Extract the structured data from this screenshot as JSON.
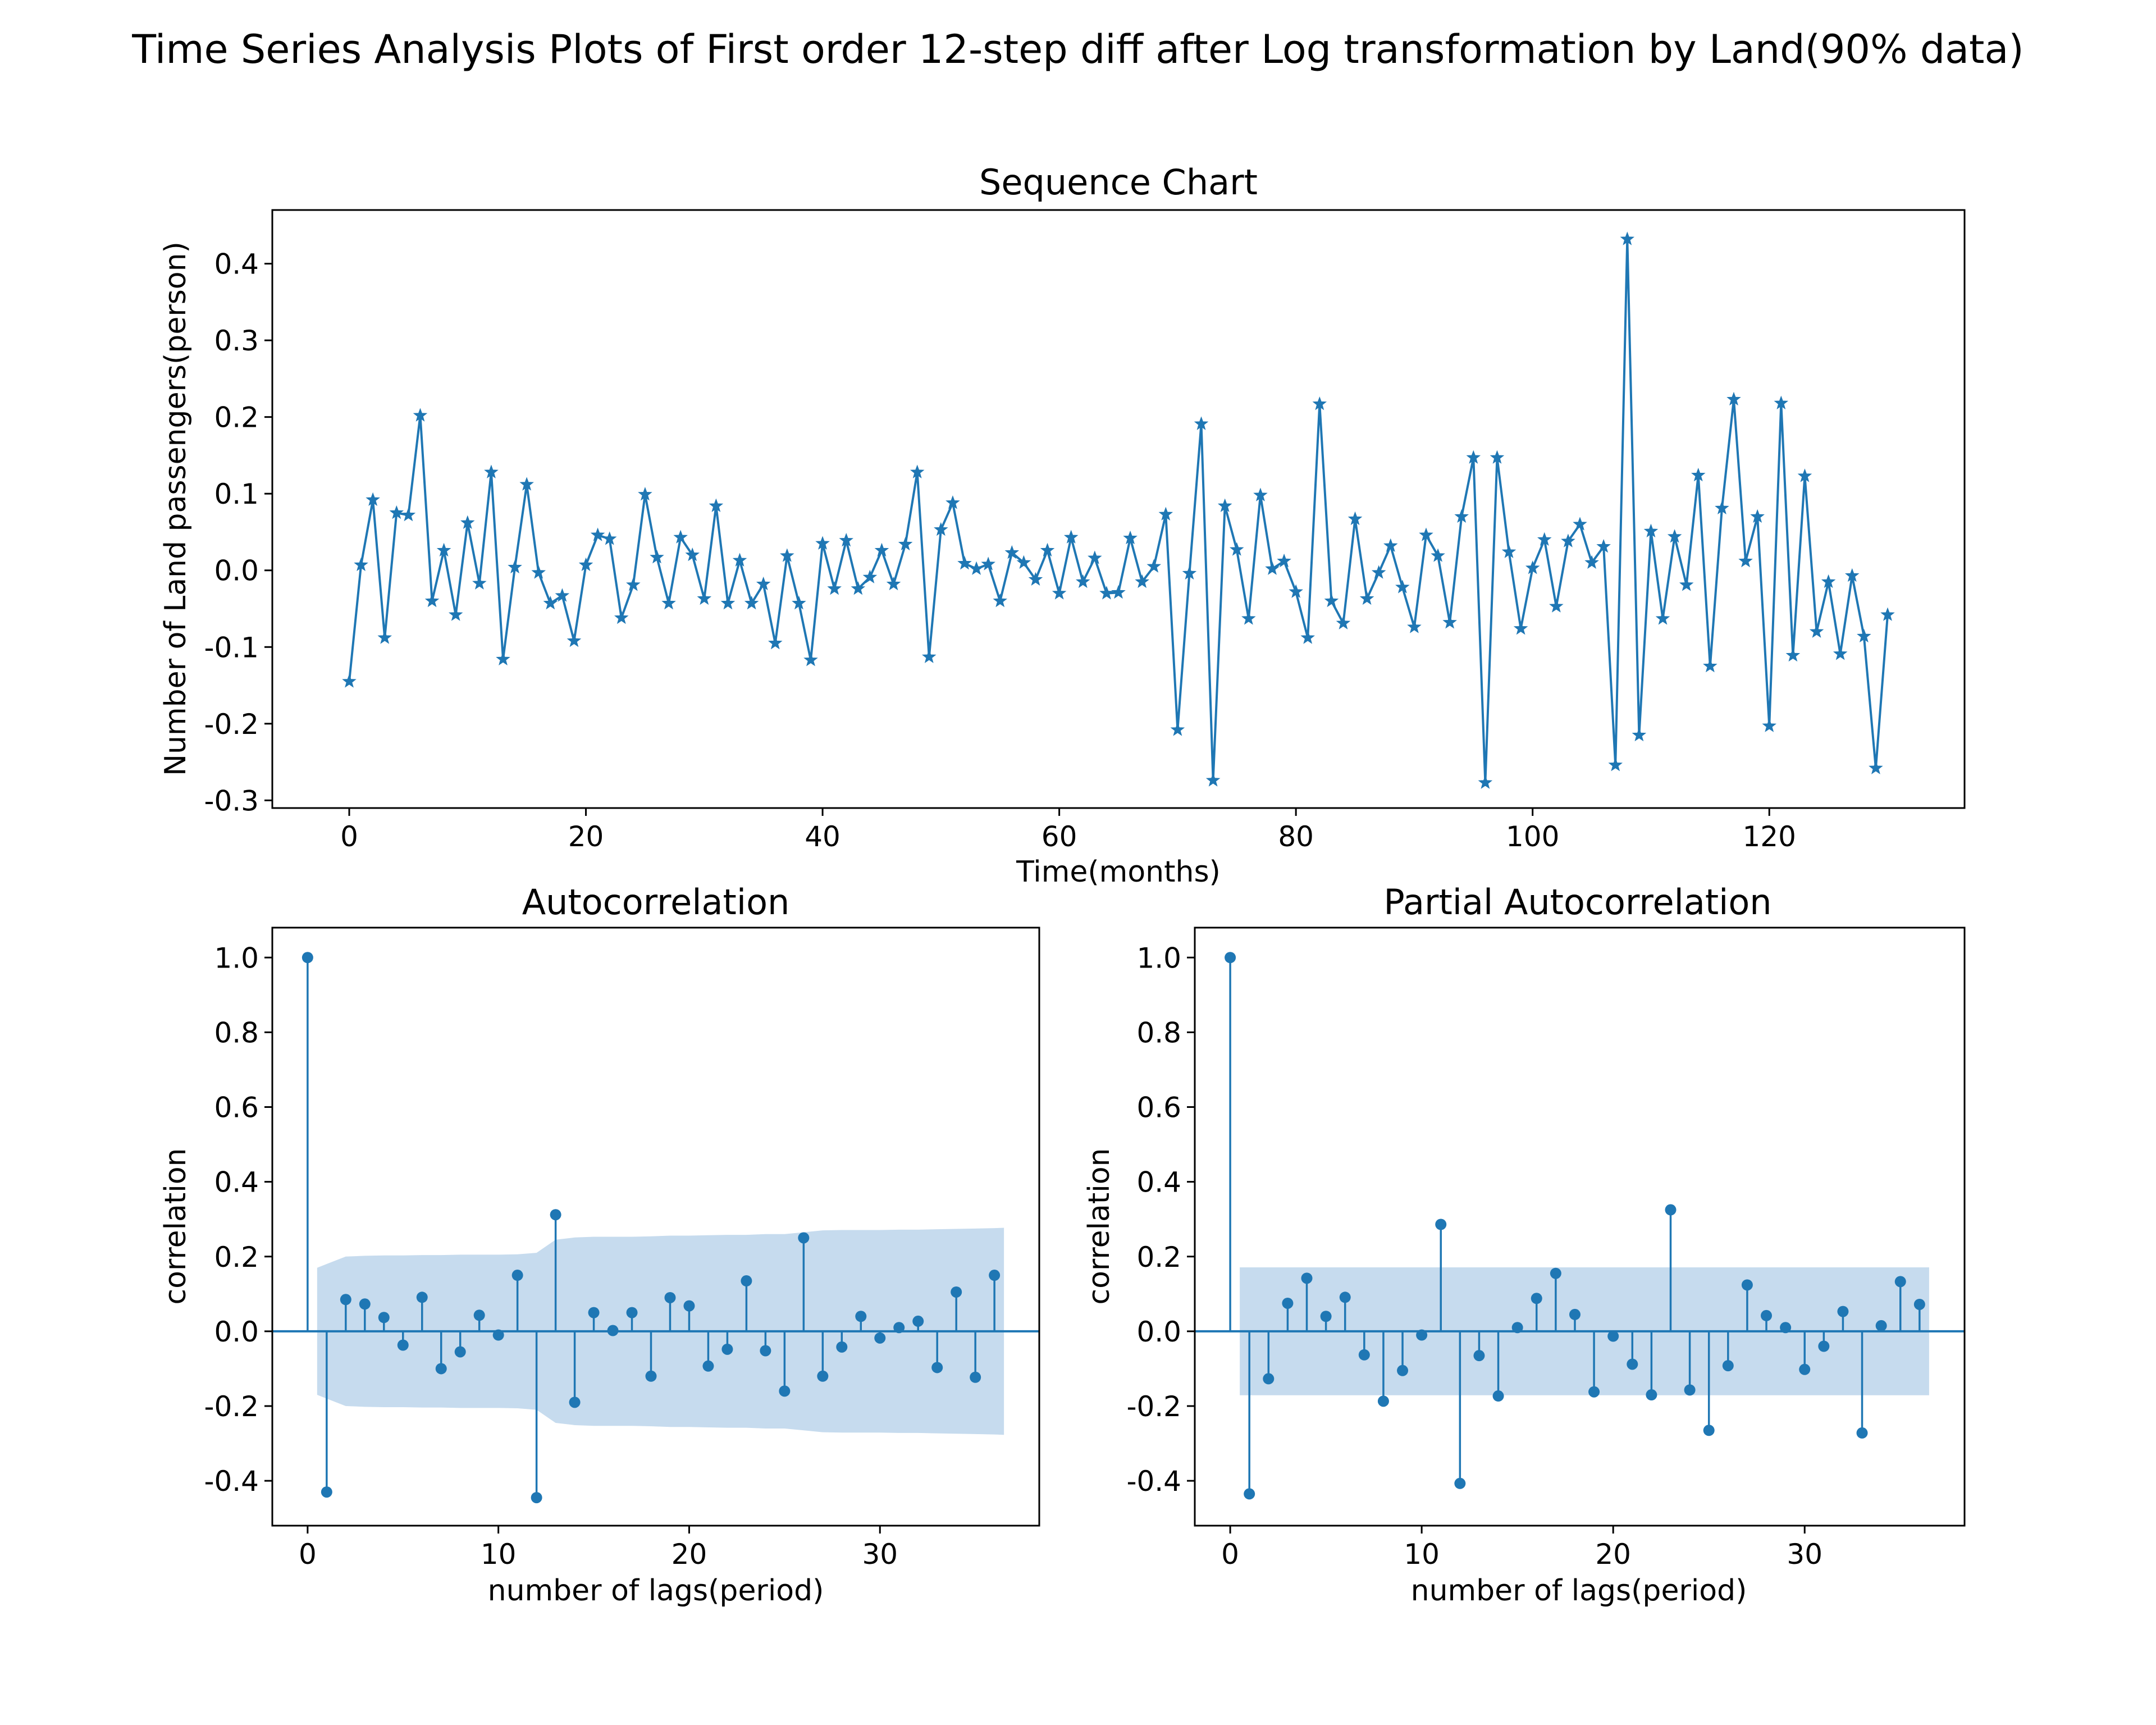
{
  "figure": {
    "title": "Time Series Analysis Plots of First order 12-step diff after Log transformation by Land(90% data)",
    "color": "#1f77b4",
    "band_color": "#c6dbee"
  },
  "chart_data": [
    {
      "type": "line",
      "title": "Sequence Chart",
      "xlabel": "Time(months)",
      "ylabel": "Number of Land passengers(person)",
      "marker": "star",
      "xlim": [
        -6.5,
        136.5
      ],
      "ylim": [
        -0.31,
        0.47
      ],
      "xticks": [
        0,
        20,
        40,
        60,
        80,
        100,
        120
      ],
      "xtick_labels": [
        "0",
        "20",
        "40",
        "60",
        "80",
        "100",
        "120"
      ],
      "yticks": [
        -0.3,
        -0.2,
        -0.1,
        0.0,
        0.1,
        0.2,
        0.3,
        0.4
      ],
      "ytick_labels": [
        "-0.3",
        "-0.2",
        "-0.1",
        "0.0",
        "0.1",
        "0.2",
        "0.3",
        "0.4"
      ],
      "series": [
        {
          "values": [
            -0.145,
            0.007,
            0.092,
            -0.088,
            0.075,
            0.072,
            0.202,
            -0.04,
            0.026,
            -0.058,
            0.062,
            -0.017,
            0.128,
            -0.116,
            0.004,
            0.112,
            -0.003,
            -0.043,
            -0.033,
            -0.092,
            0.007,
            0.046,
            0.041,
            -0.062,
            -0.019,
            0.099,
            0.017,
            -0.043,
            0.043,
            0.02,
            -0.037,
            0.084,
            -0.043,
            0.013,
            -0.043,
            -0.018,
            -0.095,
            0.019,
            -0.043,
            -0.117,
            0.035,
            -0.024,
            0.039,
            -0.024,
            -0.009,
            0.026,
            -0.018,
            0.034,
            0.128,
            -0.113,
            0.053,
            0.088,
            0.009,
            0.002,
            0.008,
            -0.04,
            0.023,
            0.01,
            -0.012,
            0.026,
            -0.03,
            0.043,
            -0.015,
            0.016,
            -0.03,
            -0.029,
            0.042,
            -0.015,
            0.005,
            0.073,
            -0.208,
            -0.004,
            0.191,
            -0.274,
            0.084,
            0.027,
            -0.063,
            0.098,
            0.002,
            0.012,
            -0.028,
            -0.088,
            0.217,
            -0.04,
            -0.069,
            0.067,
            -0.037,
            -0.003,
            0.032,
            -0.022,
            -0.074,
            0.046,
            0.019,
            -0.068,
            0.07,
            0.147,
            -0.277,
            0.147,
            0.024,
            -0.076,
            0.003,
            0.04,
            -0.047,
            0.038,
            0.06,
            0.01,
            0.031,
            -0.254,
            0.432,
            -0.215,
            0.051,
            -0.063,
            0.044,
            -0.019,
            0.124,
            -0.125,
            0.081,
            0.223,
            0.012,
            0.07,
            -0.203,
            0.218,
            -0.111,
            0.123,
            -0.08,
            -0.015,
            -0.109,
            -0.007,
            -0.086,
            -0.258,
            -0.058
          ]
        }
      ]
    },
    {
      "type": "stem",
      "title": "Autocorrelation",
      "xlabel": "number of lags(period)",
      "ylabel": "correlation",
      "xlim": [
        -1.85,
        38.35
      ],
      "ylim": [
        -0.52,
        1.08
      ],
      "xticks": [
        0,
        10,
        20,
        30
      ],
      "xtick_labels": [
        "0",
        "10",
        "20",
        "30"
      ],
      "yticks": [
        -0.4,
        -0.2,
        0.0,
        0.2,
        0.4,
        0.6,
        0.8,
        1.0
      ],
      "ytick_labels": [
        "-0.4",
        "-0.2",
        "0.0",
        "0.2",
        "0.4",
        "0.6",
        "0.8",
        "1.0"
      ],
      "lags": [
        0,
        1,
        2,
        3,
        4,
        5,
        6,
        7,
        8,
        9,
        10,
        11,
        12,
        13,
        14,
        15,
        16,
        17,
        18,
        19,
        20,
        21,
        22,
        23,
        24,
        25,
        26,
        27,
        28,
        29,
        30,
        31,
        32,
        33,
        34,
        35,
        36
      ],
      "values": [
        1.0,
        -0.43,
        0.085,
        0.073,
        0.037,
        -0.037,
        0.091,
        -0.1,
        -0.055,
        0.043,
        -0.01,
        0.15,
        -0.445,
        0.312,
        -0.19,
        0.05,
        0.002,
        0.05,
        -0.12,
        0.09,
        0.068,
        -0.093,
        -0.048,
        0.135,
        -0.052,
        -0.16,
        0.25,
        -0.12,
        -0.042,
        0.04,
        -0.018,
        0.01,
        0.027,
        -0.097,
        0.105,
        -0.123,
        0.15
      ],
      "confidence_band": {
        "lags": [
          0.5,
          1,
          2,
          3,
          4,
          5,
          6,
          7,
          8,
          9,
          10,
          11,
          12,
          13,
          14,
          15,
          16,
          17,
          18,
          19,
          20,
          21,
          22,
          23,
          24,
          25,
          26,
          27,
          28,
          29,
          30,
          31,
          32,
          33,
          34,
          35,
          36,
          36.5
        ],
        "upper": [
          0.17,
          0.18,
          0.2,
          0.202,
          0.203,
          0.203,
          0.204,
          0.204,
          0.205,
          0.205,
          0.205,
          0.206,
          0.21,
          0.245,
          0.251,
          0.253,
          0.253,
          0.253,
          0.254,
          0.256,
          0.256,
          0.257,
          0.258,
          0.258,
          0.26,
          0.26,
          0.265,
          0.27,
          0.271,
          0.271,
          0.271,
          0.272,
          0.272,
          0.273,
          0.274,
          0.275,
          0.276,
          0.277
        ]
      }
    },
    {
      "type": "stem",
      "title": "Partial Autocorrelation",
      "xlabel": "number of lags(period)",
      "ylabel": "correlation",
      "xlim": [
        -1.85,
        38.35
      ],
      "ylim": [
        -0.52,
        1.08
      ],
      "xticks": [
        0,
        10,
        20,
        30
      ],
      "xtick_labels": [
        "0",
        "10",
        "20",
        "30"
      ],
      "yticks": [
        -0.4,
        -0.2,
        0.0,
        0.2,
        0.4,
        0.6,
        0.8,
        1.0
      ],
      "ytick_labels": [
        "-0.4",
        "-0.2",
        "0.0",
        "0.2",
        "0.4",
        "0.6",
        "0.8",
        "1.0"
      ],
      "lags": [
        0,
        1,
        2,
        3,
        4,
        5,
        6,
        7,
        8,
        9,
        10,
        11,
        12,
        13,
        14,
        15,
        16,
        17,
        18,
        19,
        20,
        21,
        22,
        23,
        24,
        25,
        26,
        27,
        28,
        29,
        30,
        31,
        32,
        33,
        34,
        35,
        36
      ],
      "values": [
        1.0,
        -0.435,
        -0.127,
        0.075,
        0.142,
        0.04,
        0.091,
        -0.063,
        -0.187,
        -0.105,
        -0.01,
        0.286,
        -0.407,
        -0.065,
        -0.173,
        0.01,
        0.088,
        0.155,
        0.045,
        -0.162,
        -0.013,
        -0.088,
        -0.17,
        0.325,
        -0.157,
        -0.265,
        -0.092,
        0.124,
        0.042,
        0.01,
        -0.102,
        -0.04,
        0.053,
        -0.272,
        0.015,
        0.133,
        0.072
      ],
      "confidence_band": {
        "lags": [
          0.5,
          36.5
        ],
        "upper": [
          0.171,
          0.171
        ]
      }
    }
  ]
}
